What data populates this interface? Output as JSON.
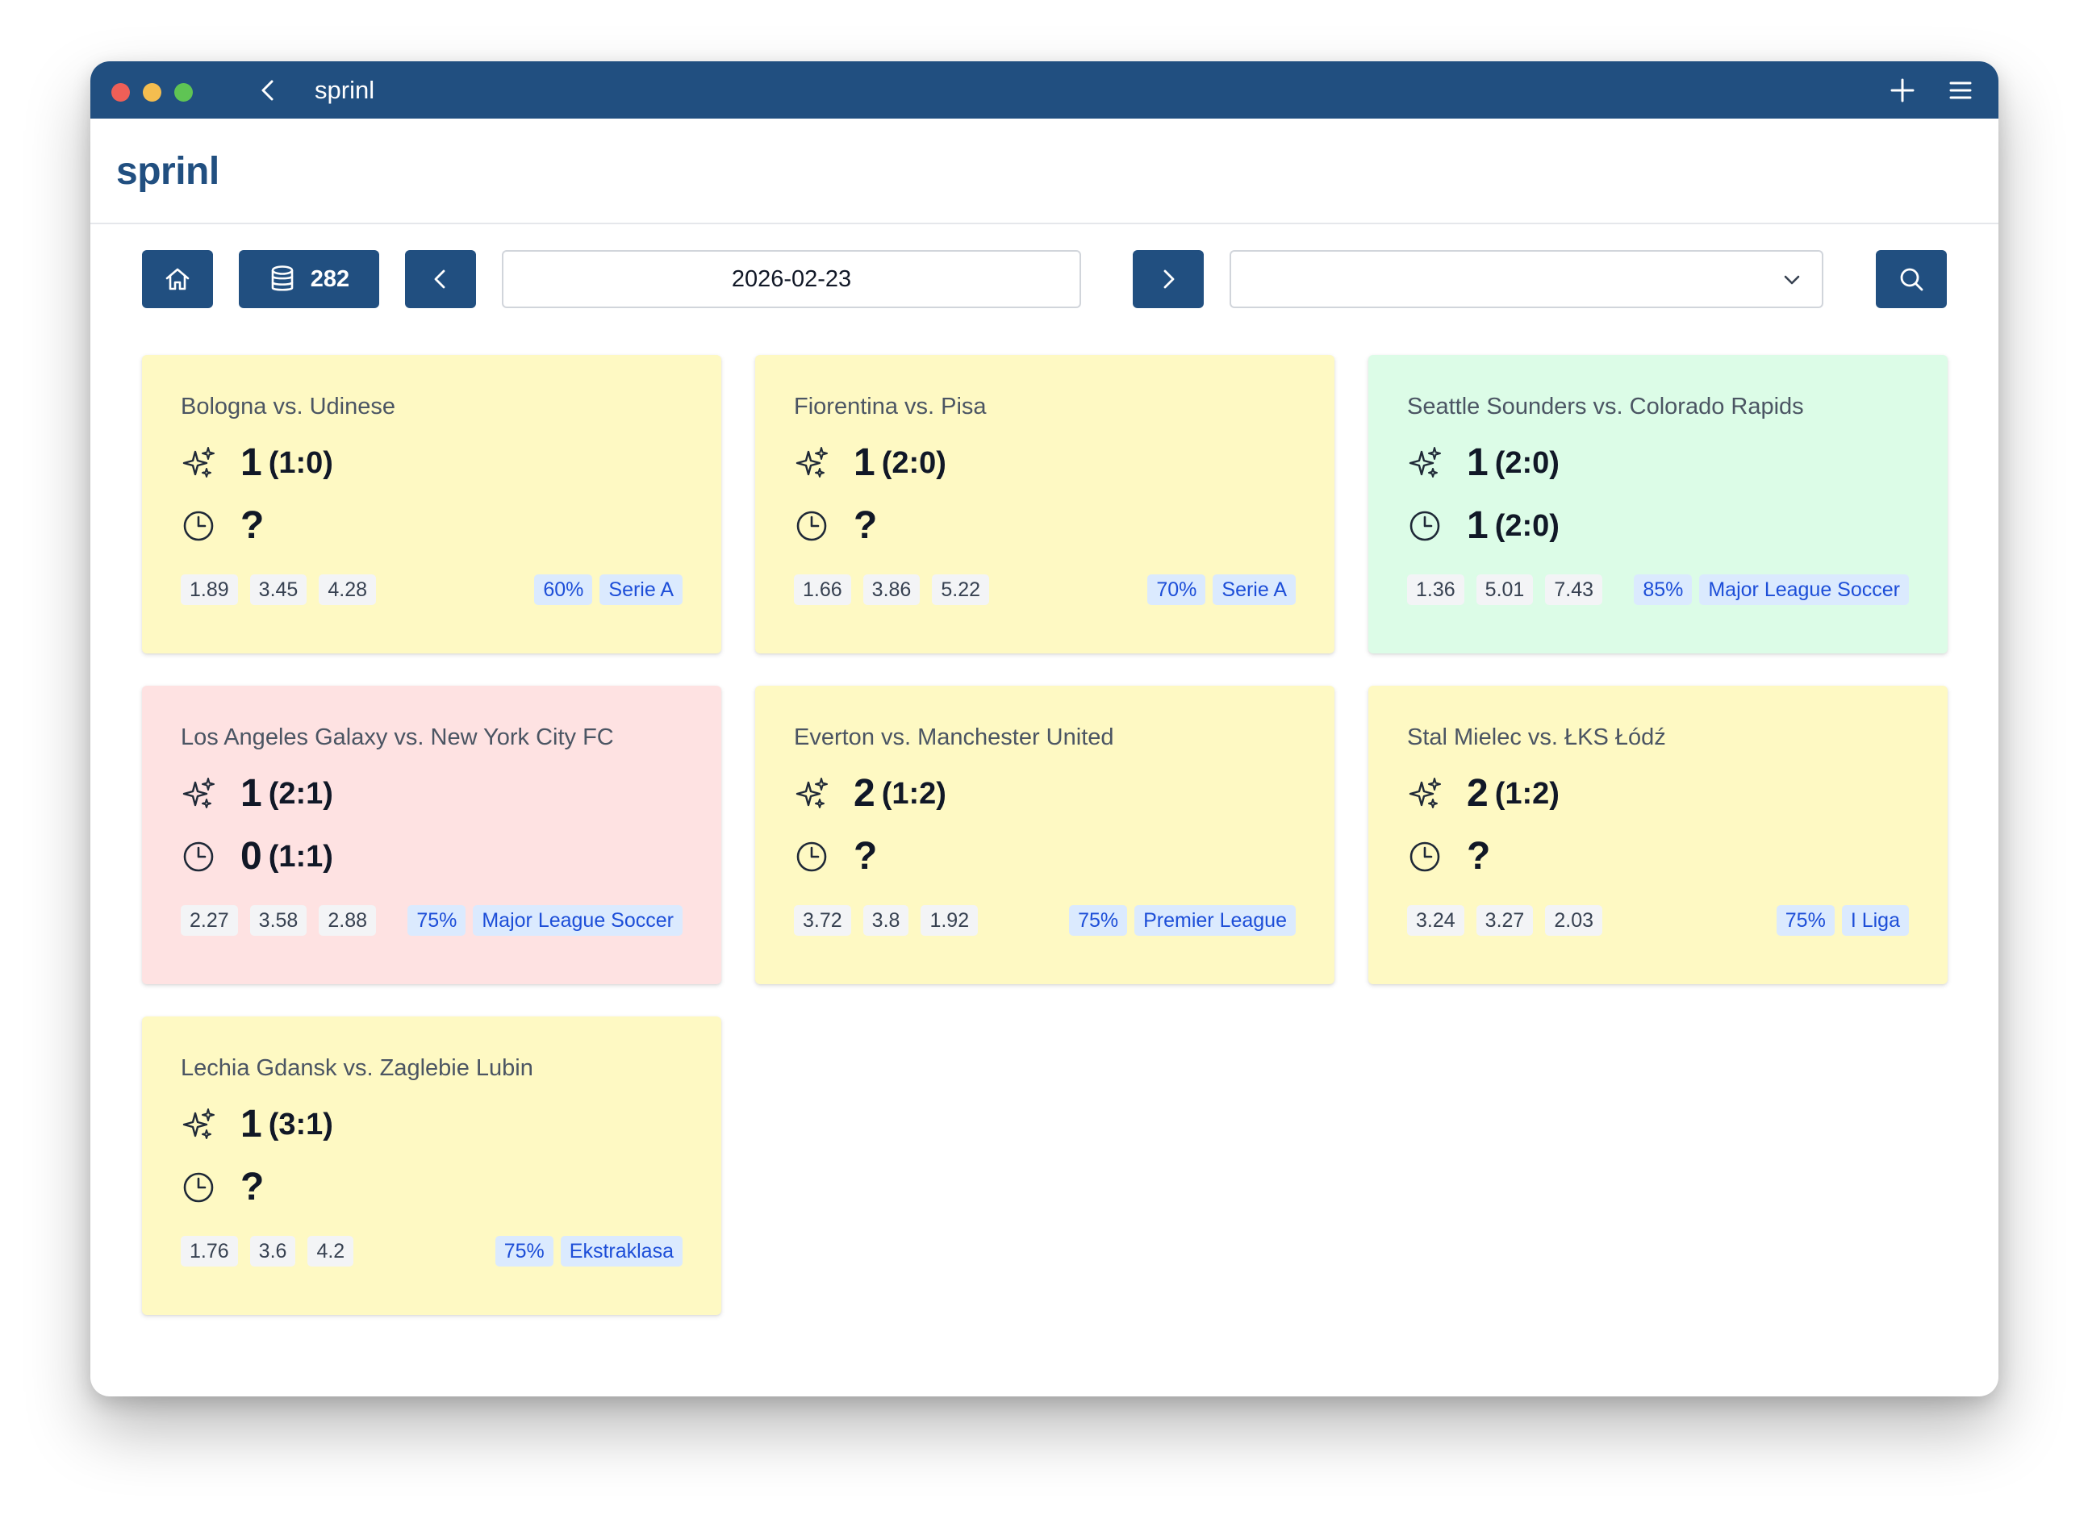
{
  "window": {
    "title": "sprinl"
  },
  "brand": "sprinl",
  "toolbar": {
    "count": "282",
    "date_value": "2026-02-23",
    "select_value": ""
  },
  "matches": [
    {
      "name": "Bologna vs. Udinese",
      "color": "yellow",
      "prediction": "1",
      "prediction_score": "(1:0)",
      "result": "?",
      "result_score": "",
      "odds": [
        "1.89",
        "3.45",
        "4.28"
      ],
      "confidence": "60%",
      "league": "Serie A"
    },
    {
      "name": "Fiorentina vs. Pisa",
      "color": "yellow",
      "prediction": "1",
      "prediction_score": "(2:0)",
      "result": "?",
      "result_score": "",
      "odds": [
        "1.66",
        "3.86",
        "5.22"
      ],
      "confidence": "70%",
      "league": "Serie A"
    },
    {
      "name": "Seattle Sounders vs. Colorado Rapids",
      "color": "green",
      "prediction": "1",
      "prediction_score": "(2:0)",
      "result": "1",
      "result_score": "(2:0)",
      "odds": [
        "1.36",
        "5.01",
        "7.43"
      ],
      "confidence": "85%",
      "league": "Major League Soccer"
    },
    {
      "name": "Los Angeles Galaxy vs. New York City FC",
      "color": "red",
      "prediction": "1",
      "prediction_score": "(2:1)",
      "result": "0",
      "result_score": "(1:1)",
      "odds": [
        "2.27",
        "3.58",
        "2.88"
      ],
      "confidence": "75%",
      "league": "Major League Soccer"
    },
    {
      "name": "Everton vs. Manchester United",
      "color": "yellow",
      "prediction": "2",
      "prediction_score": "(1:2)",
      "result": "?",
      "result_score": "",
      "odds": [
        "3.72",
        "3.8",
        "1.92"
      ],
      "confidence": "75%",
      "league": "Premier League"
    },
    {
      "name": "Stal Mielec vs. ŁKS Łódź",
      "color": "yellow",
      "prediction": "2",
      "prediction_score": "(1:2)",
      "result": "?",
      "result_score": "",
      "odds": [
        "3.24",
        "3.27",
        "2.03"
      ],
      "confidence": "75%",
      "league": "I Liga"
    },
    {
      "name": "Lechia Gdansk vs. Zaglebie Lubin",
      "color": "yellow",
      "prediction": "1",
      "prediction_score": "(3:1)",
      "result": "?",
      "result_score": "",
      "odds": [
        "1.76",
        "3.6",
        "4.2"
      ],
      "confidence": "75%",
      "league": "Ekstraklasa"
    }
  ],
  "colors": {
    "titlebar": "#214f80",
    "card_pending": "#fef9c3",
    "card_correct": "#dcfce7",
    "card_wrong": "#fee2e2",
    "tag_bg": "#dbeafe",
    "tag_text": "#1d4ed8"
  }
}
